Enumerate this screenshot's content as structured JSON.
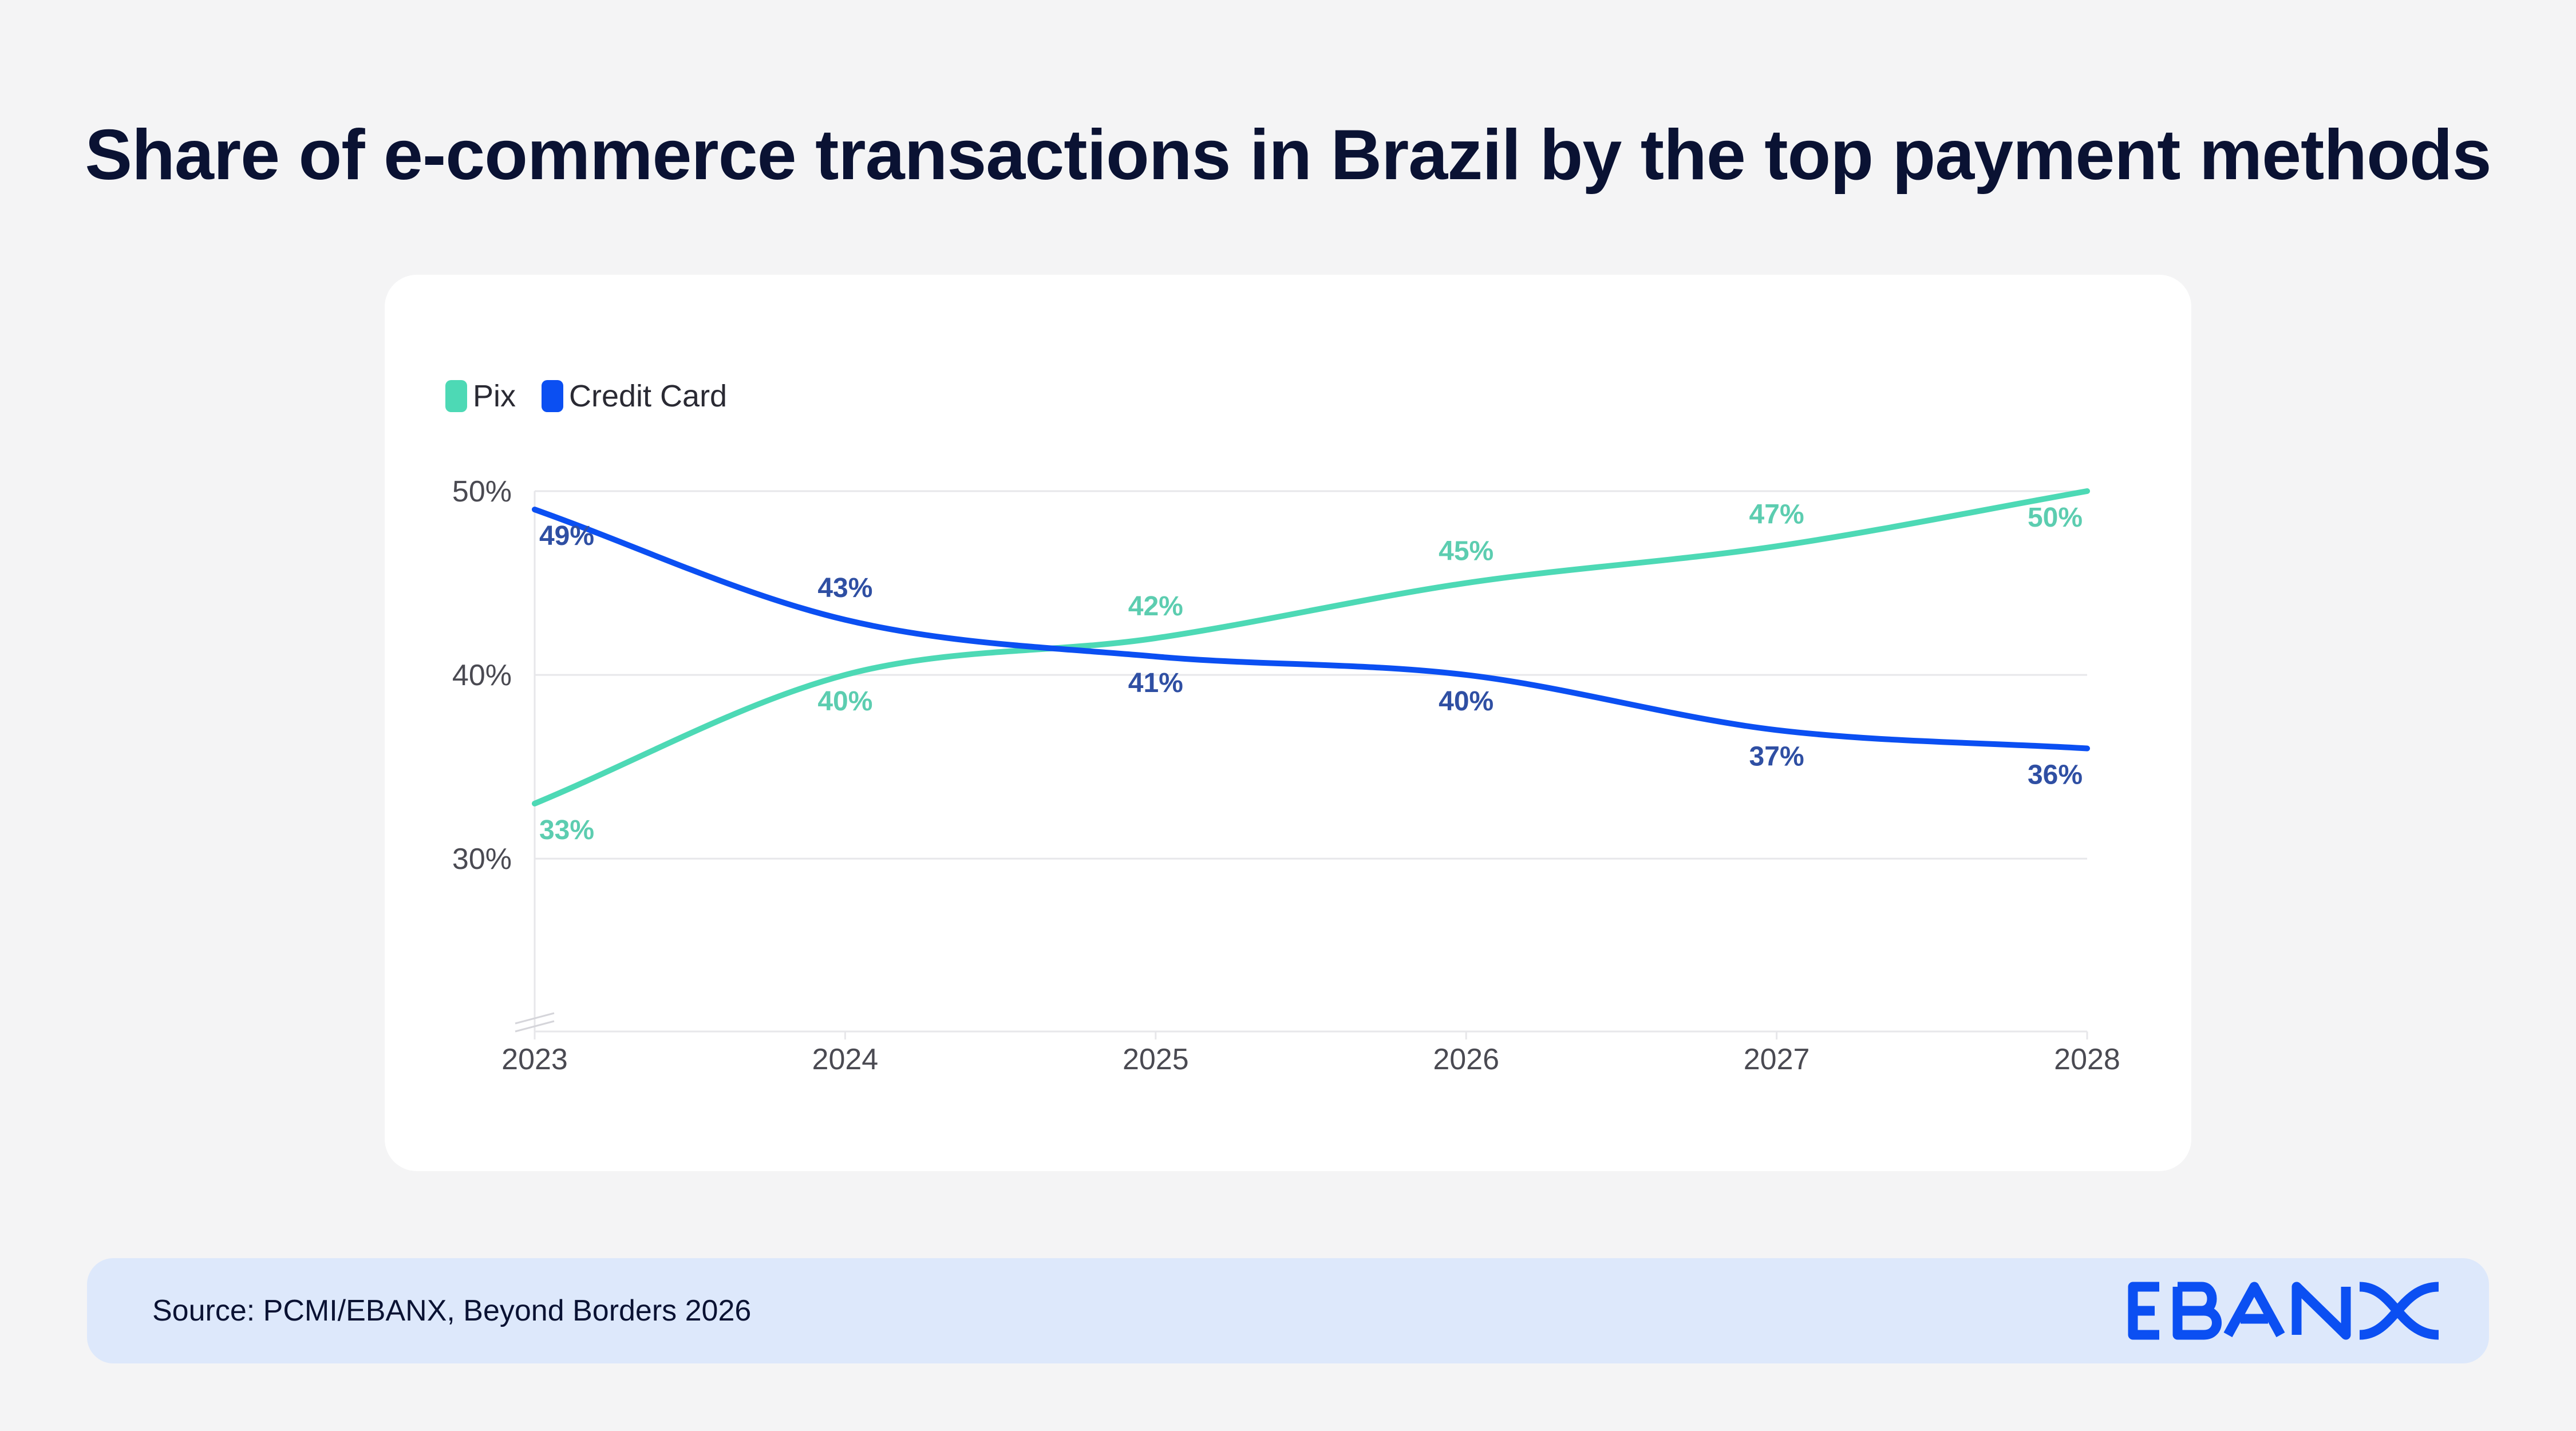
{
  "title": "Share of e-commerce transactions in Brazil by the top payment methods",
  "footer": {
    "source": "Source: PCMI/EBANX, Beyond Borders 2026",
    "logo_text": "EBANX",
    "logo_color": "#0b4ff2"
  },
  "chart_data": {
    "type": "line",
    "title": "Share of e-commerce transactions in Brazil by the top payment methods",
    "xlabel": "",
    "ylabel": "",
    "x": [
      2023,
      2024,
      2025,
      2026,
      2027,
      2028
    ],
    "x_labels": [
      "2023",
      "2024",
      "2025",
      "2026",
      "2027",
      "2028"
    ],
    "y_ticks": [
      30,
      40,
      50
    ],
    "y_tick_labels": [
      "30%",
      "40%",
      "50%"
    ],
    "ylim": [
      20.6,
      50
    ],
    "grid": true,
    "legend_position": "top-left",
    "series": [
      {
        "name": "Pix",
        "color": "#4dd9b5",
        "label_color": "#5ccdb0",
        "values": [
          33,
          40,
          42,
          45,
          47,
          50
        ],
        "labels": [
          "33%",
          "40%",
          "42%",
          "45%",
          "47%",
          "50%"
        ]
      },
      {
        "name": "Credit Card",
        "color": "#0b4ff2",
        "label_color": "#2f4fa3",
        "values": [
          49,
          43,
          41,
          40,
          37,
          36
        ],
        "labels": [
          "49%",
          "43%",
          "41%",
          "40%",
          "37%",
          "36%"
        ]
      }
    ]
  }
}
